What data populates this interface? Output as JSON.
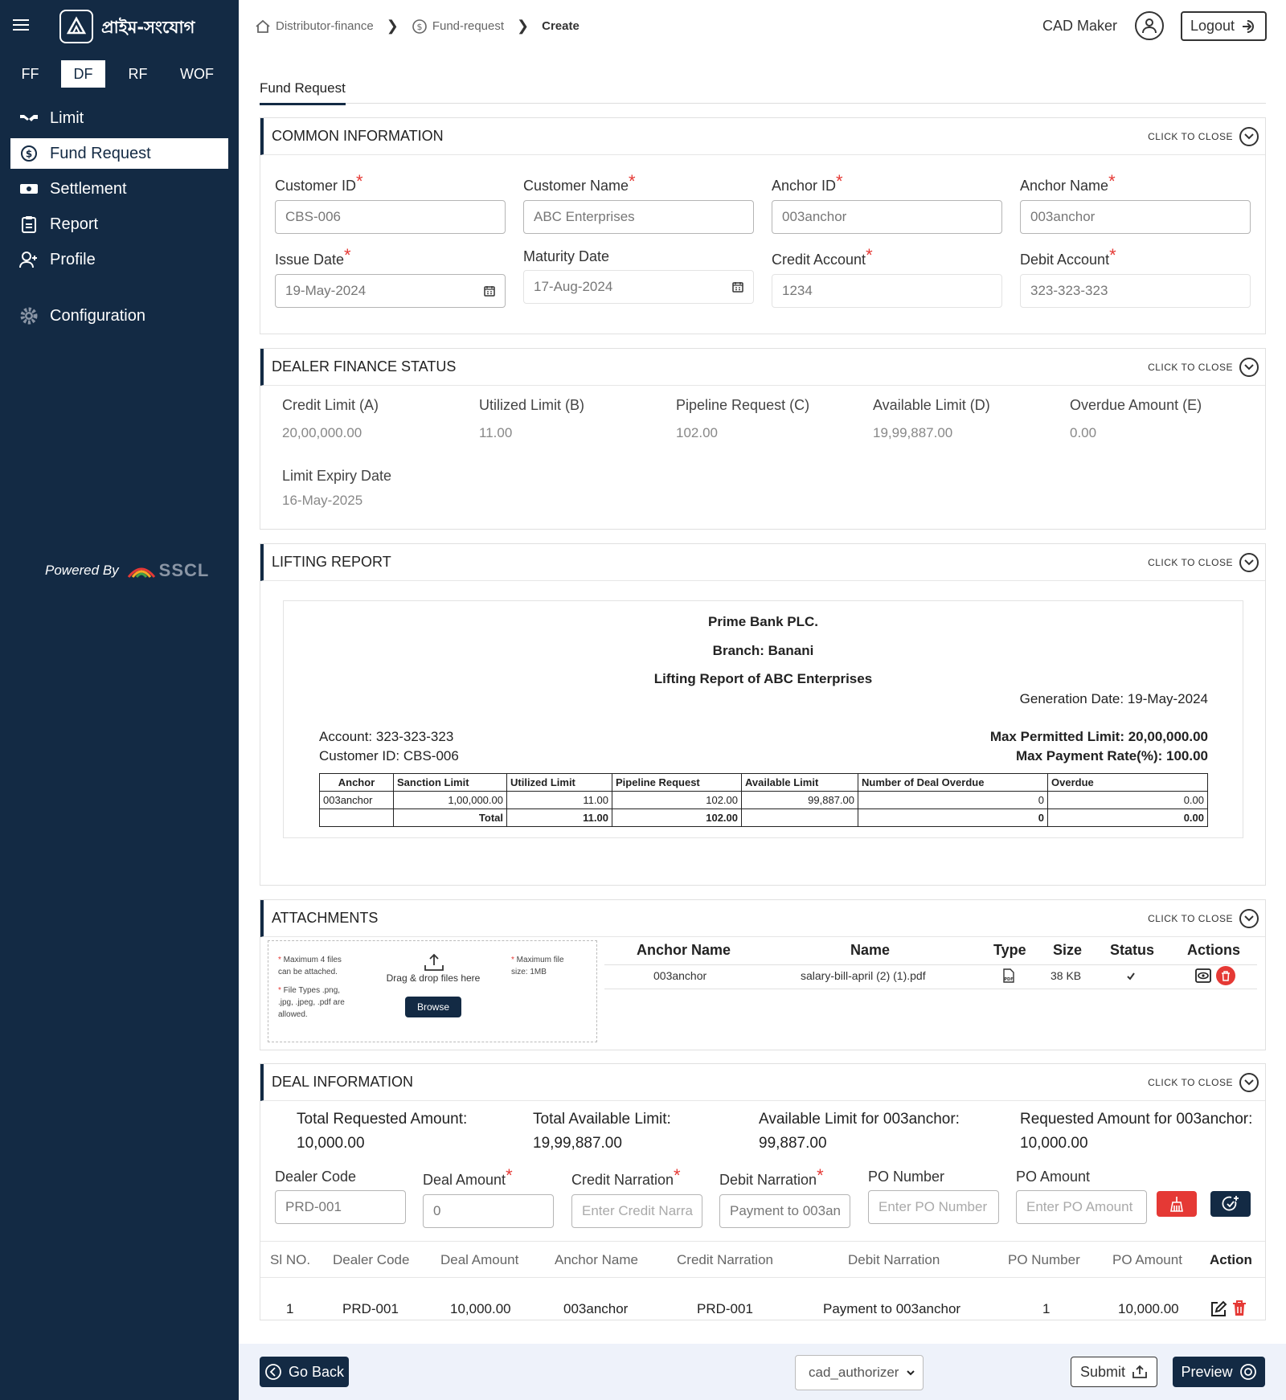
{
  "brand": {
    "name": "প্রাইম-সংযোগ"
  },
  "sidebar": {
    "modes": [
      "FF",
      "DF",
      "RF",
      "WOF"
    ],
    "active_mode": "DF",
    "items": [
      {
        "label": "Limit",
        "icon": "handshake-icon"
      },
      {
        "label": "Fund Request",
        "icon": "dollar-circle-icon"
      },
      {
        "label": "Settlement",
        "icon": "money-icon"
      },
      {
        "label": "Report",
        "icon": "clipboard-icon"
      },
      {
        "label": "Profile",
        "icon": "user-plus-icon"
      },
      {
        "label": "Configuration",
        "icon": "gear-icon"
      }
    ],
    "powered_by": "Powered By",
    "powered_brand": "SSCL"
  },
  "header": {
    "breadcrumbs": [
      "Distributor-finance",
      "Fund-request",
      "Create"
    ],
    "user_role": "CAD Maker",
    "logout_label": "Logout"
  },
  "page_tab": "Fund Request",
  "close_label": "CLICK TO CLOSE",
  "common": {
    "title": "COMMON INFORMATION",
    "customer_id_label": "Customer ID",
    "customer_id": "CBS-006",
    "customer_name_label": "Customer Name",
    "customer_name": "ABC Enterprises",
    "anchor_id_label": "Anchor ID",
    "anchor_id": "003anchor",
    "anchor_name_label": "Anchor Name",
    "anchor_name": "003anchor",
    "issue_date_label": "Issue Date",
    "issue_date": "19-May-2024",
    "maturity_date_label": "Maturity Date",
    "maturity_date": "17-Aug-2024",
    "credit_account_label": "Credit Account",
    "credit_account": "1234",
    "debit_account_label": "Debit Account",
    "debit_account": "323-323-323"
  },
  "dealer_status": {
    "title": "DEALER FINANCE STATUS",
    "stats": [
      {
        "label": "Credit Limit (A)",
        "value": "20,00,000.00"
      },
      {
        "label": "Utilized Limit (B)",
        "value": "11.00"
      },
      {
        "label": "Pipeline Request (C)",
        "value": "102.00"
      },
      {
        "label": "Available Limit (D)",
        "value": "19,99,887.00"
      },
      {
        "label": "Overdue Amount (E)",
        "value": "0.00"
      }
    ],
    "expiry_label": "Limit Expiry Date",
    "expiry_value": "16-May-2025"
  },
  "lifting": {
    "title": "LIFTING REPORT",
    "bank": "Prime Bank PLC.",
    "branch": "Branch: Banani",
    "report_title": "Lifting Report of ABC Enterprises",
    "generation": "Generation Date: 19-May-2024",
    "account": "Account: 323-323-323",
    "customer": "Customer ID: CBS-006",
    "max_limit": "Max Permitted Limit: 20,00,000.00",
    "max_rate": "Max Payment Rate(%): 100.00",
    "columns": [
      "Anchor",
      "Sanction Limit",
      "Utilized Limit",
      "Pipeline Request",
      "Available Limit",
      "Number of Deal Overdue",
      "Overdue"
    ],
    "row": [
      "003anchor",
      "1,00,000.00",
      "11.00",
      "102.00",
      "99,887.00",
      "0",
      "0.00"
    ],
    "total": [
      "",
      "Total",
      "11.00",
      "102.00",
      "",
      "0",
      "0.00"
    ]
  },
  "attachments": {
    "title": "ATTACHMENTS",
    "note_max_files": "Maximum 4 files can be attached.",
    "note_types": "File Types .png, .jpg, .jpeg, .pdf are allowed.",
    "note_size": "Maximum file size: 1MB",
    "drop_text": "Drag & drop files here",
    "browse_label": "Browse",
    "columns": [
      "Anchor Name",
      "Name",
      "Type",
      "Size",
      "Status",
      "Actions"
    ],
    "row": {
      "anchor": "003anchor",
      "name": "salary-bill-april (2) (1).pdf",
      "type": "PDF",
      "size": "38 KB"
    }
  },
  "deal": {
    "title": "DEAL INFORMATION",
    "stats": [
      {
        "label": "Total Requested Amount:",
        "value": "10,000.00"
      },
      {
        "label": "Total Available Limit:",
        "value": "19,99,887.00"
      },
      {
        "label": "Available Limit for 003anchor:",
        "value": "99,887.00"
      },
      {
        "label": "Requested Amount for 003anchor:",
        "value": "10,000.00"
      }
    ],
    "dealer_code_label": "Dealer Code",
    "dealer_code": "PRD-001",
    "deal_amount_label": "Deal Amount",
    "deal_amount": "0",
    "credit_narration_label": "Credit Narration",
    "credit_narration_ph": "Enter Credit Narra",
    "debit_narration_label": "Debit Narration",
    "debit_narration": "Payment to 003an",
    "po_number_label": "PO Number",
    "po_number_ph": "Enter PO Number",
    "po_amount_label": "PO Amount",
    "po_amount_ph": "Enter PO Amount",
    "columns": [
      "Sl NO.",
      "Dealer Code",
      "Deal Amount",
      "Anchor Name",
      "Credit Narration",
      "Debit Narration",
      "PO Number",
      "PO Amount",
      "Action"
    ],
    "row": [
      "1",
      "PRD-001",
      "10,000.00",
      "003anchor",
      "PRD-001",
      "Payment to 003anchor",
      "1",
      "10,000.00"
    ]
  },
  "footer": {
    "go_back": "Go Back",
    "select_value": "cad_authorizer",
    "submit": "Submit",
    "preview": "Preview"
  },
  "colors": {
    "sidebar": "#132a44",
    "accent": "#132a44",
    "danger": "#e53935"
  }
}
